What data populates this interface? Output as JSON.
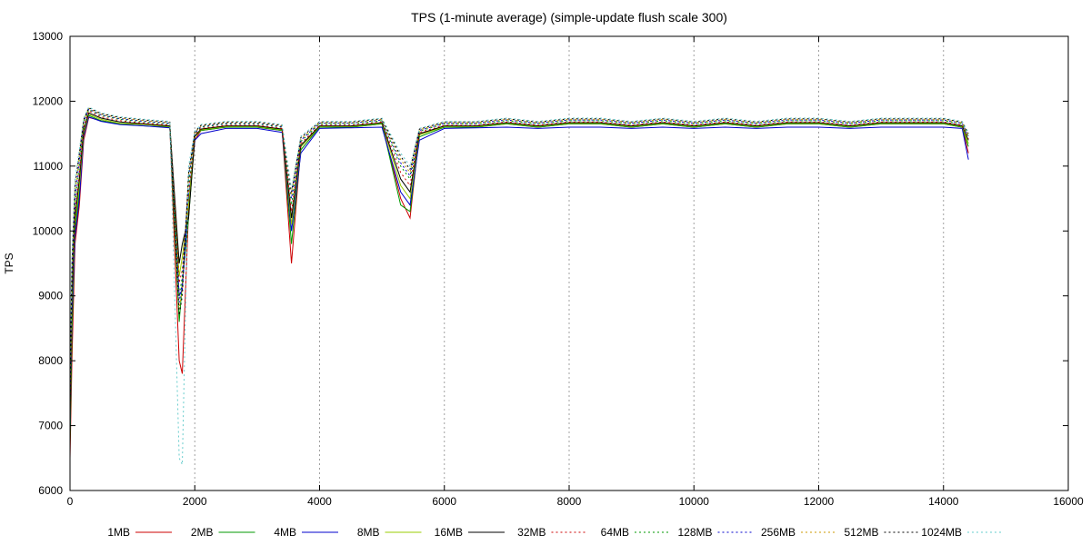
{
  "chart_data": {
    "type": "line",
    "title": "TPS (1-minute average) (simple-update flush scale 300)",
    "xlabel": "",
    "ylabel": "TPS",
    "xlim": [
      0,
      16000
    ],
    "ylim": [
      6000,
      13000
    ],
    "x_ticks": [
      0,
      2000,
      4000,
      6000,
      8000,
      10000,
      12000,
      14000,
      16000
    ],
    "y_ticks": [
      6000,
      7000,
      8000,
      9000,
      10000,
      11000,
      12000,
      13000
    ],
    "x_grid": true,
    "y_grid": false,
    "legend_position": "bottom",
    "x": [
      0,
      30,
      80,
      150,
      220,
      300,
      500,
      800,
      1200,
      1600,
      1750,
      1800,
      1900,
      2000,
      2100,
      2500,
      3000,
      3400,
      3550,
      3700,
      4000,
      4500,
      5000,
      5300,
      5450,
      5600,
      6000,
      6500,
      7000,
      7500,
      8000,
      8500,
      9000,
      9500,
      10000,
      10500,
      11000,
      11500,
      12000,
      12500,
      13000,
      13500,
      14000,
      14300,
      14400
    ],
    "series": [
      {
        "name": "1MB",
        "color": "#cc0000",
        "dash": "solid",
        "values": [
          6500,
          8000,
          9800,
          10400,
          11400,
          11750,
          11700,
          11650,
          11650,
          11600,
          8000,
          7800,
          10300,
          11400,
          11550,
          11600,
          11600,
          11550,
          9500,
          11300,
          11600,
          11600,
          11650,
          10500,
          10200,
          11500,
          11600,
          11600,
          11650,
          11600,
          11650,
          11650,
          11600,
          11650,
          11600,
          11650,
          11600,
          11650,
          11650,
          11600,
          11650,
          11650,
          11650,
          11600,
          11200
        ]
      },
      {
        "name": "2MB",
        "color": "#009900",
        "dash": "solid",
        "values": [
          6700,
          8400,
          10000,
          10600,
          11500,
          11780,
          11700,
          11650,
          11620,
          11600,
          8600,
          9200,
          10200,
          11450,
          11550,
          11600,
          11600,
          11550,
          9800,
          11250,
          11600,
          11600,
          11650,
          10400,
          10300,
          11450,
          11600,
          11600,
          11650,
          11600,
          11650,
          11650,
          11600,
          11650,
          11600,
          11650,
          11600,
          11650,
          11650,
          11600,
          11650,
          11650,
          11650,
          11600,
          11300
        ]
      },
      {
        "name": "4MB",
        "color": "#0000cc",
        "dash": "solid",
        "values": [
          6900,
          8700,
          9900,
          10500,
          11450,
          11760,
          11690,
          11640,
          11620,
          11590,
          9000,
          9100,
          10500,
          11400,
          11500,
          11580,
          11580,
          11520,
          10000,
          11200,
          11580,
          11590,
          11600,
          10600,
          10400,
          11400,
          11580,
          11590,
          11600,
          11580,
          11600,
          11600,
          11580,
          11600,
          11580,
          11600,
          11580,
          11600,
          11600,
          11580,
          11600,
          11600,
          11600,
          11580,
          11100
        ]
      },
      {
        "name": "8MB",
        "color": "#99cc00",
        "dash": "solid",
        "values": [
          7000,
          8900,
          10100,
          10700,
          11500,
          11800,
          11720,
          11660,
          11640,
          11610,
          9300,
          9600,
          10400,
          11450,
          11560,
          11610,
          11610,
          11560,
          10100,
          11300,
          11610,
          11610,
          11660,
          10700,
          10500,
          11480,
          11610,
          11610,
          11660,
          11610,
          11660,
          11660,
          11610,
          11660,
          11610,
          11660,
          11610,
          11660,
          11660,
          11610,
          11660,
          11660,
          11660,
          11610,
          11350
        ]
      },
      {
        "name": "16MB",
        "color": "#000000",
        "dash": "solid",
        "values": [
          7100,
          9000,
          10200,
          10800,
          11550,
          11820,
          11740,
          11680,
          11650,
          11620,
          9500,
          9800,
          10200,
          11460,
          11570,
          11620,
          11620,
          11570,
          10200,
          11320,
          11620,
          11620,
          11670,
          10800,
          10600,
          11500,
          11620,
          11620,
          11670,
          11620,
          11670,
          11670,
          11620,
          11670,
          11620,
          11670,
          11620,
          11670,
          11670,
          11620,
          11670,
          11670,
          11670,
          11620,
          11400
        ]
      },
      {
        "name": "32MB",
        "color": "#cc0000",
        "dash": "dotted",
        "values": [
          7200,
          9100,
          10300,
          10900,
          11600,
          11850,
          11760,
          11700,
          11660,
          11630,
          9200,
          9400,
          10600,
          11480,
          11580,
          11630,
          11630,
          11580,
          10300,
          11350,
          11630,
          11630,
          11680,
          10900,
          10700,
          11520,
          11630,
          11630,
          11680,
          11630,
          11680,
          11680,
          11630,
          11680,
          11630,
          11680,
          11630,
          11680,
          11680,
          11630,
          11680,
          11680,
          11680,
          11630,
          11420
        ]
      },
      {
        "name": "64MB",
        "color": "#009900",
        "dash": "dotted",
        "values": [
          7300,
          9200,
          10400,
          11000,
          11650,
          11870,
          11780,
          11720,
          11680,
          11650,
          9000,
          9300,
          10700,
          11500,
          11600,
          11650,
          11650,
          11600,
          10400,
          11380,
          11650,
          11650,
          11700,
          11000,
          10800,
          11540,
          11650,
          11650,
          11700,
          11650,
          11700,
          11700,
          11650,
          11700,
          11650,
          11700,
          11650,
          11700,
          11700,
          11650,
          11700,
          11700,
          11700,
          11650,
          11450
        ]
      },
      {
        "name": "128MB",
        "color": "#0000cc",
        "dash": "dotted",
        "values": [
          7400,
          9300,
          10500,
          11100,
          11680,
          11880,
          11790,
          11730,
          11690,
          11660,
          8900,
          9200,
          10800,
          11510,
          11610,
          11660,
          11660,
          11610,
          10500,
          11400,
          11660,
          11660,
          11710,
          11050,
          10850,
          11550,
          11660,
          11660,
          11710,
          11660,
          11710,
          11710,
          11660,
          11710,
          11660,
          11710,
          11660,
          11710,
          11710,
          11660,
          11710,
          11710,
          11710,
          11660,
          11460
        ]
      },
      {
        "name": "256MB",
        "color": "#cc9900",
        "dash": "dotted",
        "values": [
          7500,
          9400,
          10600,
          11150,
          11700,
          11890,
          11800,
          11740,
          11700,
          11670,
          8800,
          9100,
          10850,
          11520,
          11620,
          11670,
          11670,
          11620,
          10550,
          11420,
          11670,
          11670,
          11720,
          11100,
          10900,
          11560,
          11670,
          11670,
          11720,
          11670,
          11720,
          11720,
          11670,
          11720,
          11670,
          11720,
          11670,
          11720,
          11720,
          11670,
          11720,
          11720,
          11720,
          11670,
          11480
        ]
      },
      {
        "name": "512MB",
        "color": "#000000",
        "dash": "dotted",
        "values": [
          7600,
          9500,
          10700,
          11200,
          11720,
          11900,
          11810,
          11750,
          11710,
          11680,
          8700,
          9000,
          10900,
          11530,
          11630,
          11680,
          11680,
          11630,
          10600,
          11440,
          11680,
          11680,
          11730,
          11150,
          10950,
          11570,
          11680,
          11680,
          11730,
          11680,
          11730,
          11730,
          11680,
          11730,
          11680,
          11730,
          11680,
          11730,
          11730,
          11680,
          11730,
          11730,
          11730,
          11680,
          11500
        ]
      },
      {
        "name": "1024MB",
        "color": "#66cccc",
        "dash": "dotted",
        "values": [
          7700,
          9600,
          10800,
          11250,
          11740,
          11910,
          11820,
          11760,
          11720,
          11690,
          6500,
          6400,
          11000,
          11540,
          11640,
          11690,
          11690,
          11640,
          10650,
          11460,
          11690,
          11690,
          11740,
          11200,
          11000,
          11580,
          11690,
          11690,
          11740,
          11690,
          11740,
          11740,
          11690,
          11740,
          11690,
          11740,
          11690,
          11740,
          11740,
          11690,
          11740,
          11740,
          11740,
          11690,
          11520
        ]
      }
    ]
  }
}
